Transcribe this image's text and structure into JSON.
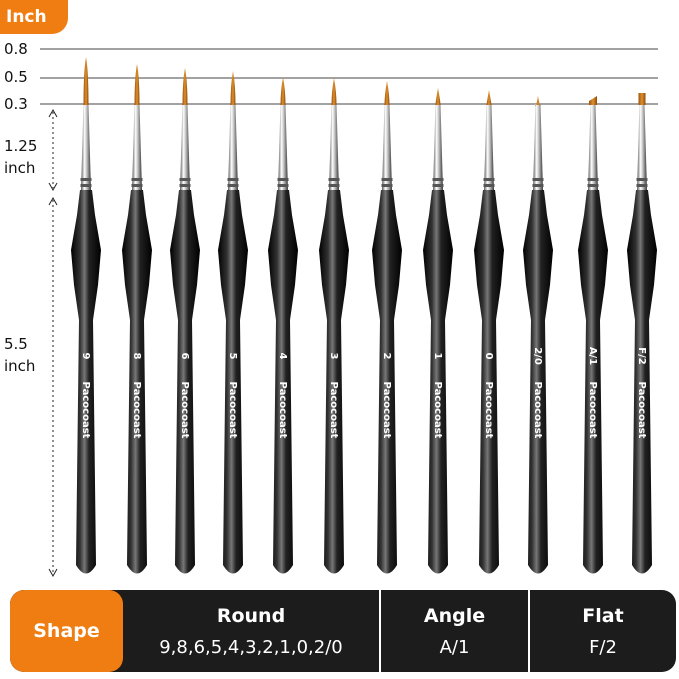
{
  "unit_badge": "Inch",
  "ticks": [
    "0.8",
    "0.5",
    "0.3"
  ],
  "dimensions": {
    "ferrule": {
      "value": "1.25",
      "unit": "inch"
    },
    "handle": {
      "value": "5.5",
      "unit": "inch"
    }
  },
  "brand": "Pacocoast",
  "brushes": [
    {
      "size": "9",
      "shape": "round"
    },
    {
      "size": "8",
      "shape": "round"
    },
    {
      "size": "6",
      "shape": "round"
    },
    {
      "size": "5",
      "shape": "round"
    },
    {
      "size": "4",
      "shape": "round"
    },
    {
      "size": "3",
      "shape": "round"
    },
    {
      "size": "2",
      "shape": "round"
    },
    {
      "size": "1",
      "shape": "round"
    },
    {
      "size": "0",
      "shape": "round"
    },
    {
      "size": "2/0",
      "shape": "round"
    },
    {
      "size": "A/1",
      "shape": "angle"
    },
    {
      "size": "F/2",
      "shape": "flat"
    }
  ],
  "table": {
    "label": "Shape",
    "columns": [
      {
        "header": "Round",
        "value": "9,8,6,5,4,3,2,1,0,2/0"
      },
      {
        "header": "Angle",
        "value": "A/1"
      },
      {
        "header": "Flat",
        "value": "F/2"
      }
    ]
  },
  "colors": {
    "accent": "#f07d12",
    "bristle": "#c8741c",
    "handle": "#1a1a1a"
  }
}
